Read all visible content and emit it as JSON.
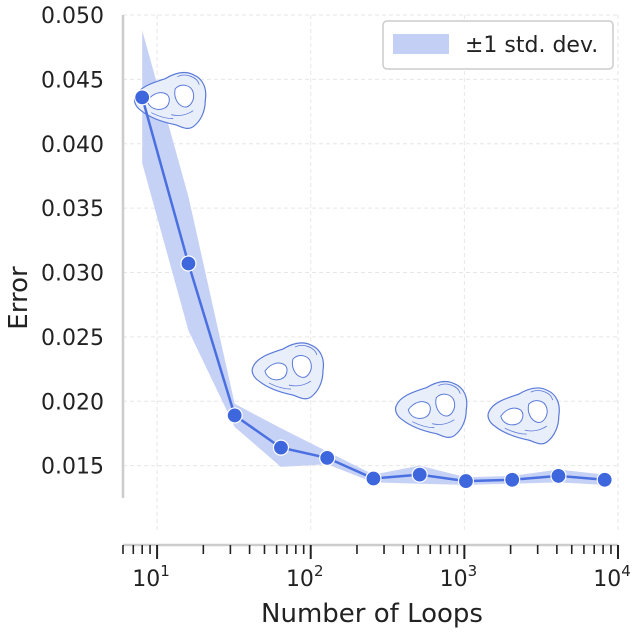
{
  "chart_data": {
    "type": "line",
    "xscale": "log",
    "xlim": [
      6,
      10000
    ],
    "ylim": [
      0.01,
      0.05
    ],
    "xlabel": "Number of Loops",
    "ylabel": "Error",
    "grid": true,
    "legend": {
      "placement": "top-right",
      "label": "±1 std. dev."
    },
    "x_ticks": [
      {
        "value": 10,
        "base": "10",
        "exp": "1"
      },
      {
        "value": 100,
        "base": "10",
        "exp": "2"
      },
      {
        "value": 1000,
        "base": "10",
        "exp": "3"
      },
      {
        "value": 10000,
        "base": "10",
        "exp": "4"
      }
    ],
    "y_ticks": [
      {
        "value": 0.015,
        "label": "0.015"
      },
      {
        "value": 0.02,
        "label": "0.020"
      },
      {
        "value": 0.025,
        "label": "0.025"
      },
      {
        "value": 0.03,
        "label": "0.030"
      },
      {
        "value": 0.035,
        "label": "0.035"
      },
      {
        "value": 0.04,
        "label": "0.040"
      },
      {
        "value": 0.045,
        "label": "0.045"
      },
      {
        "value": 0.05,
        "label": "0.050"
      }
    ],
    "series": [
      {
        "x": [
          8,
          16,
          32,
          64,
          128,
          256,
          512,
          1024,
          2048,
          4096,
          8192
        ],
        "y": [
          0.0436,
          0.0307,
          0.0189,
          0.0164,
          0.0156,
          0.014,
          0.0143,
          0.0138,
          0.0139,
          0.0142,
          0.0139
        ],
        "lower": [
          0.0385,
          0.0255,
          0.018,
          0.0149,
          0.0151,
          0.0137,
          0.0136,
          0.0135,
          0.0136,
          0.0137,
          0.0135
        ],
        "upper": [
          0.0488,
          0.0359,
          0.0198,
          0.0179,
          0.0161,
          0.0143,
          0.015,
          0.0141,
          0.0142,
          0.0147,
          0.0143
        ]
      }
    ],
    "thumbnails_at": [
      {
        "x": 12,
        "y": 0.0435
      },
      {
        "x": 70,
        "y": 0.0225
      },
      {
        "x": 600,
        "y": 0.0195
      },
      {
        "x": 2400,
        "y": 0.019
      }
    ],
    "colors": {
      "line": "#4a6fe0",
      "band": "#c3cff5",
      "marker": "#3e66dd",
      "grid": "#e6e6e6",
      "axis": "#cccccc",
      "thumb_fill": "#e9eefb",
      "thumb_stroke": "#5a7ad8"
    }
  }
}
